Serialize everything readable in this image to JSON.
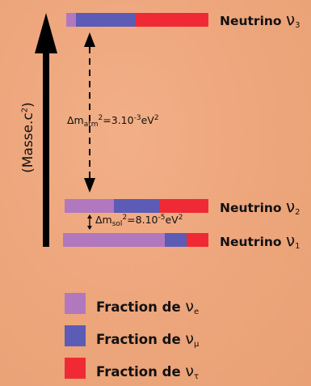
{
  "axis_label": {
    "text": "(Masse.c",
    "sup": "2",
    "suffix": ")"
  },
  "colors": {
    "nu_e": "#B178BF",
    "nu_mu": "#5C5BB5",
    "nu_tau": "#EF2A35"
  },
  "levels": [
    {
      "name": "Neutrino",
      "sym": "ν",
      "sub": "3",
      "fractions": {
        "e": 0.07,
        "mu": 0.42,
        "tau": 0.51
      }
    },
    {
      "name": "Neutrino",
      "sym": "ν",
      "sub": "2",
      "fractions": {
        "e": 0.34,
        "mu": 0.32,
        "tau": 0.34
      }
    },
    {
      "name": "Neutrino",
      "sym": "ν",
      "sub": "1",
      "fractions": {
        "e": 0.7,
        "mu": 0.15,
        "tau": 0.15
      }
    }
  ],
  "annotations": {
    "atm": {
      "prefix": "Δm",
      "sub": "atm",
      "sup": "2",
      "eq": "=3.10",
      "exp": "-3",
      "unit": "eV",
      "unit_sup": "2"
    },
    "sol": {
      "prefix": "Δm",
      "sub": "sol",
      "sup": "2",
      "eq": "=8.10",
      "exp": "-5",
      "unit": "eV",
      "unit_sup": "2"
    }
  },
  "legend": [
    {
      "text": "Fraction de",
      "sym": "ν",
      "sub": "e",
      "color": "#B178BF"
    },
    {
      "text": "Fraction de",
      "sym": "ν",
      "sub": "μ",
      "color": "#5C5BB5"
    },
    {
      "text": "Fraction de",
      "sym": "ν",
      "sub": "τ",
      "color": "#EF2A35"
    }
  ]
}
